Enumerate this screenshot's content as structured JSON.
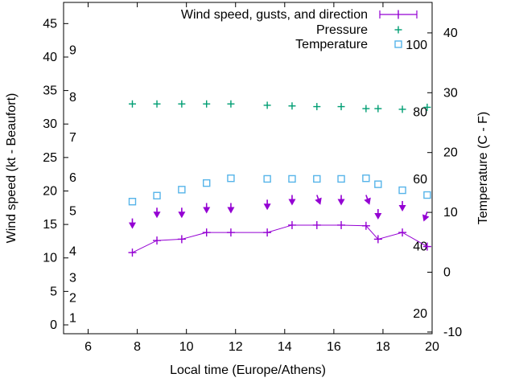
{
  "window": {
    "background": "#ffffff",
    "foreground": "#000000"
  },
  "chart_data": {
    "type": "line",
    "title": "",
    "xlabel": "Local time (Europe/Athens)",
    "ylabel_left": "Wind speed (kt - Beaufort)",
    "ylabel_right": "Temperature (C - F)",
    "grid": false,
    "legend_position": "top-right-inside",
    "x_range_hours": [
      5,
      20
    ],
    "x_ticks": [
      "6",
      "8",
      "10",
      "12",
      "14",
      "16",
      "18",
      "20"
    ],
    "y_left_ticks_kt": [
      "0",
      "5",
      "10",
      "15",
      "20",
      "25",
      "30",
      "35",
      "40",
      "45"
    ],
    "y_left_range_kt": [
      -1.3,
      48.2
    ],
    "y_right_ticks_c": [
      "-10",
      "0",
      "10",
      "20",
      "30",
      "40"
    ],
    "beaufort_scale_labels": [
      {
        "label": "1",
        "kt": 1
      },
      {
        "label": "2",
        "kt": 4
      },
      {
        "label": "3",
        "kt": 7
      },
      {
        "label": "4",
        "kt": 11
      },
      {
        "label": "5",
        "kt": 17
      },
      {
        "label": "6",
        "kt": 22
      },
      {
        "label": "7",
        "kt": 28
      },
      {
        "label": "8",
        "kt": 34
      },
      {
        "label": "9",
        "kt": 41
      }
    ],
    "fahrenheit_scale_labels": [
      {
        "label": "20",
        "f": 20
      },
      {
        "label": "40",
        "f": 40
      },
      {
        "label": "60",
        "f": 60
      },
      {
        "label": "80",
        "f": 80
      },
      {
        "label": "100",
        "f": 100
      }
    ],
    "x_hours": [
      7.8,
      8.8,
      9.81,
      10.82,
      11.81,
      13.29,
      14.3,
      15.31,
      16.3,
      17.31,
      17.8,
      18.79,
      19.8
    ],
    "series": [
      {
        "name": "Wind speed, gusts, and direction",
        "color": "#9400d3",
        "marker": "plus",
        "style": "line-with-points-and-direction-arrows",
        "wind_kt": [
          10.8,
          12.6,
          12.8,
          13.8,
          13.8,
          13.8,
          14.9,
          14.9,
          14.9,
          14.8,
          12.8,
          13.8,
          11.7
        ],
        "gust_kt": [
          15.9,
          17.5,
          17.5,
          18.2,
          18.2,
          18.7,
          19.4,
          19.4,
          19.4,
          19.4,
          17.3,
          18.5,
          16.9
        ],
        "arrow_rotation_deg": [
          0,
          0,
          0,
          0,
          0,
          0,
          0,
          -20,
          0,
          -20,
          0,
          0,
          20
        ]
      },
      {
        "name": "Pressure",
        "color": "#009e73",
        "marker": "plus",
        "style": "points",
        "display_on_kt_axis": [
          33.0,
          33.0,
          33.0,
          33.0,
          33.0,
          32.8,
          32.7,
          32.6,
          32.6,
          32.3,
          32.3,
          32.2,
          32.5
        ]
      },
      {
        "name": "Temperature",
        "color": "#56b4e9",
        "marker": "open-square",
        "style": "points",
        "temp_c": [
          11.8,
          12.8,
          13.8,
          14.9,
          15.7,
          15.6,
          15.6,
          15.6,
          15.6,
          15.7,
          14.7,
          13.7,
          12.9
        ]
      }
    ]
  }
}
